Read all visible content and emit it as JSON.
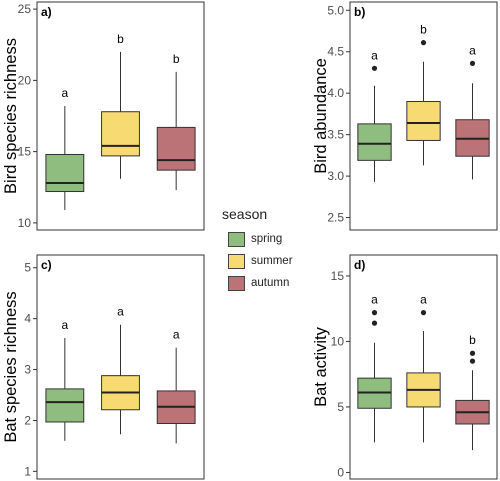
{
  "legend": {
    "title": "season",
    "items": [
      {
        "label": "spring",
        "color": "#8fbc7f"
      },
      {
        "label": "summer",
        "color": "#f7db72"
      },
      {
        "label": "autumn",
        "color": "#bb7377"
      }
    ]
  },
  "chart_data": [
    {
      "type": "boxplot",
      "panel_label": "a)",
      "ylabel": "Bird species richness",
      "ylim": [
        9.5,
        25.5
      ],
      "yticks": [
        10,
        15,
        20,
        25
      ],
      "categories": [
        "spring",
        "summer",
        "autumn"
      ],
      "boxes": [
        {
          "group": "spring",
          "whisker_low": 10.9,
          "q1": 12.2,
          "median": 12.8,
          "q3": 14.8,
          "whisker_high": 18.2,
          "outliers": [],
          "letter": "a"
        },
        {
          "group": "summer",
          "whisker_low": 13.1,
          "q1": 14.7,
          "median": 15.4,
          "q3": 17.8,
          "whisker_high": 22.0,
          "outliers": [],
          "letter": "b"
        },
        {
          "group": "autumn",
          "whisker_low": 12.3,
          "q1": 13.7,
          "median": 14.4,
          "q3": 16.7,
          "whisker_high": 20.6,
          "outliers": [],
          "letter": "b"
        }
      ]
    },
    {
      "type": "boxplot",
      "panel_label": "b)",
      "ylabel": "Bird abundance",
      "ylim": [
        2.35,
        5.1
      ],
      "yticks": [
        2.5,
        3.0,
        3.5,
        4.0,
        4.5,
        5.0
      ],
      "categories": [
        "spring",
        "summer",
        "autumn"
      ],
      "boxes": [
        {
          "group": "spring",
          "whisker_low": 2.93,
          "q1": 3.19,
          "median": 3.39,
          "q3": 3.63,
          "whisker_high": 4.09,
          "outliers": [
            4.3
          ],
          "letter": "a"
        },
        {
          "group": "summer",
          "whisker_low": 3.13,
          "q1": 3.43,
          "median": 3.64,
          "q3": 3.9,
          "whisker_high": 4.38,
          "outliers": [
            4.61
          ],
          "letter": "b"
        },
        {
          "group": "autumn",
          "whisker_low": 2.96,
          "q1": 3.24,
          "median": 3.45,
          "q3": 3.68,
          "whisker_high": 4.12,
          "outliers": [
            4.36
          ],
          "letter": "a"
        }
      ]
    },
    {
      "type": "boxplot",
      "panel_label": "c)",
      "ylabel": "Bat species richness",
      "ylim": [
        0.85,
        5.25
      ],
      "yticks": [
        1,
        2,
        3,
        4,
        5
      ],
      "categories": [
        "spring",
        "summer",
        "autumn"
      ],
      "boxes": [
        {
          "group": "spring",
          "whisker_low": 1.6,
          "q1": 1.97,
          "median": 2.36,
          "q3": 2.62,
          "whisker_high": 3.62,
          "outliers": [],
          "letter": "a"
        },
        {
          "group": "summer",
          "whisker_low": 1.73,
          "q1": 2.21,
          "median": 2.55,
          "q3": 2.88,
          "whisker_high": 3.88,
          "outliers": [],
          "letter": "a"
        },
        {
          "group": "autumn",
          "whisker_low": 1.55,
          "q1": 1.94,
          "median": 2.27,
          "q3": 2.58,
          "whisker_high": 3.43,
          "outliers": [],
          "letter": "a"
        }
      ]
    },
    {
      "type": "boxplot",
      "panel_label": "d)",
      "ylabel": "Bat activity",
      "ylim": [
        -0.5,
        16.6
      ],
      "yticks": [
        0,
        5,
        10,
        15
      ],
      "categories": [
        "spring",
        "summer",
        "autumn"
      ],
      "boxes": [
        {
          "group": "spring",
          "whisker_low": 2.3,
          "q1": 4.9,
          "median": 6.1,
          "q3": 7.2,
          "whisker_high": 9.9,
          "outliers": [
            11.4,
            12.2
          ],
          "letter": "a"
        },
        {
          "group": "summer",
          "whisker_low": 2.3,
          "q1": 5.0,
          "median": 6.3,
          "q3": 7.6,
          "whisker_high": 10.8,
          "outliers": [
            12.2
          ],
          "letter": "a"
        },
        {
          "group": "autumn",
          "whisker_low": 1.7,
          "q1": 3.7,
          "median": 4.6,
          "q3": 5.5,
          "whisker_high": 7.8,
          "outliers": [
            8.5,
            9.1
          ],
          "letter": "b"
        }
      ]
    }
  ]
}
